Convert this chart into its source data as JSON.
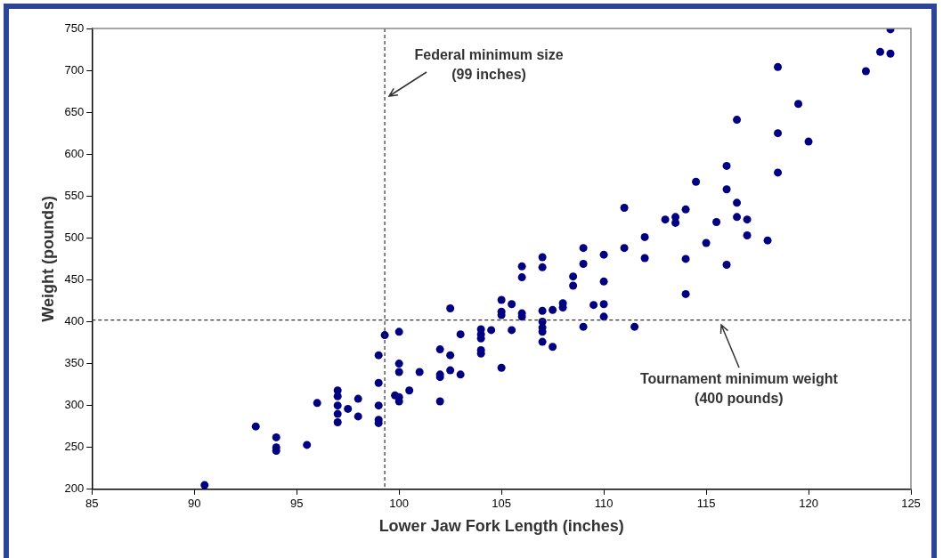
{
  "chart_data": {
    "type": "scatter",
    "xlabel": "Lower Jaw Fork Length (inches)",
    "ylabel": "Weight (pounds)",
    "xlim": [
      85,
      125
    ],
    "xticks": [
      85,
      90,
      95,
      100,
      105,
      110,
      115,
      120,
      125
    ],
    "ylim": [
      200,
      750
    ],
    "yticks": [
      200,
      250,
      300,
      350,
      400,
      450,
      500,
      550,
      600,
      650,
      700,
      750
    ],
    "marker": "circle",
    "ref_lines": [
      {
        "axis": "x",
        "value": 99.3,
        "label": "Federal minimum size\n(99 inches)",
        "color": "#333333",
        "line_style": "dashed"
      },
      {
        "axis": "y",
        "value": 402,
        "label": "Tournament minimum weight\n(400 pounds)",
        "color": "#333333",
        "line_style": "dashed"
      }
    ],
    "series": [
      {
        "color": "#000080",
        "x": [
          90.5,
          93,
          94,
          94,
          94,
          95.5,
          96,
          97,
          97,
          97,
          97,
          97,
          97.5,
          98,
          98,
          99,
          99,
          99,
          99,
          99,
          99.3,
          99.8,
          100,
          100,
          100,
          100,
          100,
          100.5,
          101,
          102,
          102,
          102,
          102,
          102.5,
          102.5,
          102.5,
          103,
          103,
          104,
          104,
          104,
          104,
          104,
          104.5,
          105,
          105,
          105,
          105,
          105.5,
          105.5,
          106,
          106,
          106,
          106,
          107,
          107,
          107,
          107,
          107,
          107,
          107,
          107.5,
          107.5,
          108,
          108,
          108.5,
          108.5,
          109,
          109,
          109,
          109.5,
          110,
          110,
          110,
          110,
          111,
          111,
          111.5,
          112,
          112,
          113,
          113.5,
          113.5,
          114,
          114,
          114,
          114.5,
          115,
          115.5,
          116,
          116,
          116,
          116.5,
          116.5,
          116.5,
          117,
          117,
          118,
          118.5,
          118.5,
          118.5,
          119.5,
          120,
          122.8,
          123.5,
          124,
          124
        ],
        "values": [
          205,
          275,
          262,
          250,
          246,
          253,
          303,
          318,
          311,
          300,
          290,
          280,
          296,
          308,
          287,
          360,
          327,
          300,
          283,
          279,
          384,
          312,
          388,
          350,
          340,
          310,
          305,
          318,
          340,
          367,
          337,
          334,
          305,
          416,
          360,
          342,
          385,
          337,
          391,
          385,
          380,
          366,
          362,
          390,
          426,
          412,
          408,
          345,
          421,
          390,
          466,
          453,
          410,
          406,
          477,
          465,
          413,
          400,
          393,
          388,
          376,
          414,
          370,
          422,
          417,
          454,
          443,
          488,
          469,
          394,
          420,
          480,
          448,
          421,
          406,
          536,
          488,
          394,
          501,
          476,
          522,
          525,
          518,
          534,
          475,
          433,
          567,
          494,
          519,
          586,
          558,
          468,
          641,
          542,
          525,
          522,
          503,
          497,
          704,
          625,
          578,
          660,
          615,
          699,
          722,
          749,
          720
        ]
      }
    ]
  }
}
